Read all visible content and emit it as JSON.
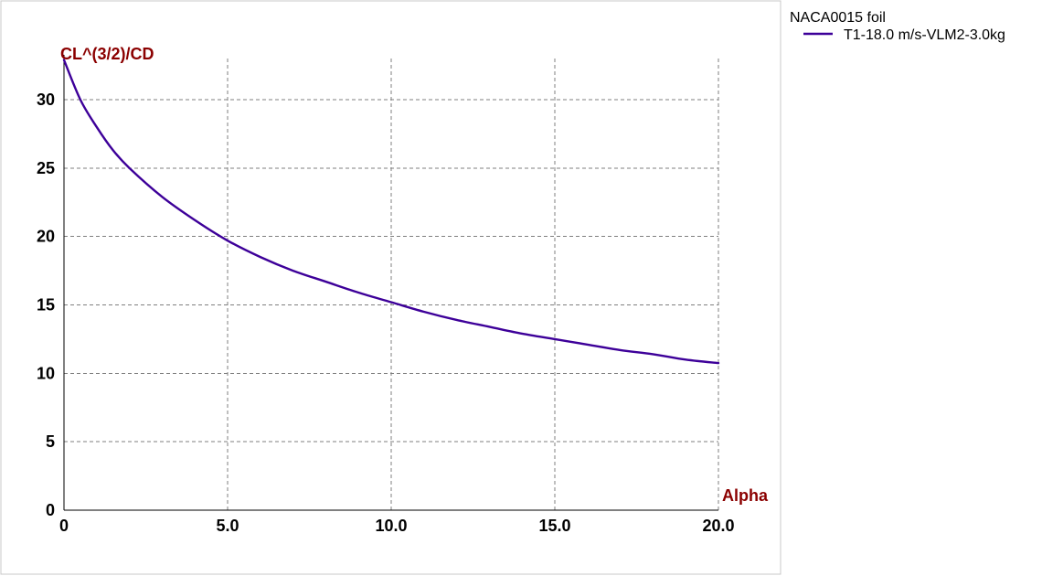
{
  "chart_data": {
    "type": "line",
    "xlabel": "Alpha",
    "ylabel": "CL^(3/2)/CD",
    "xlim": [
      0,
      20
    ],
    "ylim": [
      0,
      33
    ],
    "x_ticks": [
      0,
      5,
      10,
      15,
      20
    ],
    "x_tick_labels": [
      "0",
      "5.0",
      "10.0",
      "15.0",
      "20.0"
    ],
    "y_ticks": [
      0,
      5,
      10,
      15,
      20,
      25,
      30
    ],
    "y_tick_labels": [
      "0",
      "5",
      "10",
      "15",
      "20",
      "25",
      "30"
    ],
    "grid": true,
    "legend": {
      "title": "NACA0015 foil",
      "placement": "top-right-outside"
    },
    "series": [
      {
        "name": "T1-18.0 m/s-VLM2-3.0kg",
        "color": "#3d0099",
        "x": [
          0,
          0.5,
          1,
          1.5,
          2,
          3,
          4,
          5,
          6,
          7,
          8,
          9,
          10,
          11,
          12,
          13,
          14,
          15,
          16,
          17,
          18,
          19,
          20
        ],
        "y": [
          32.9,
          30.0,
          28.0,
          26.3,
          25.0,
          22.9,
          21.2,
          19.7,
          18.5,
          17.5,
          16.7,
          15.9,
          15.2,
          14.5,
          13.9,
          13.4,
          12.9,
          12.5,
          12.1,
          11.7,
          11.4,
          11.0,
          10.75
        ]
      }
    ]
  },
  "colors": {
    "axis_title": "#8b0000",
    "frame": "#c8c8c8"
  }
}
